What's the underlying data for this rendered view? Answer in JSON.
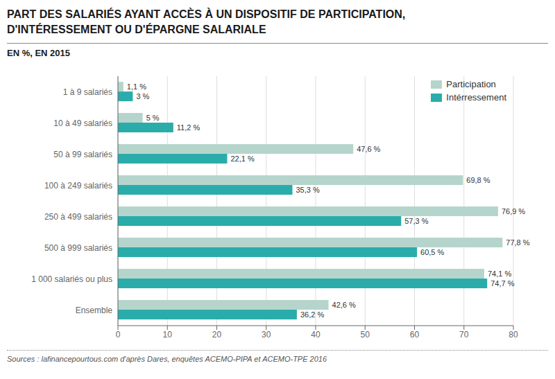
{
  "chart_data": {
    "type": "bar",
    "orientation": "horizontal",
    "title": [
      "PART DES SALARIÉS AYANT ACCÈS À UN DISPOSITIF DE PARTICIPATION,",
      "D'INTÉRESSEMENT OU D'ÉPARGNE SALARIALE"
    ],
    "subtitle": "EN %, EN 2015",
    "source": "Sources : lafinancepourtous.com d'après Dares, enquêtes ACEMO-PIPA et ACEMO-TPE 2016",
    "categories": [
      "1 à 9 salariés",
      "10 à 49 salariés",
      "50 à 99 salariés",
      "100 à 249 salariés",
      "250 à 499 salariés",
      "500 à 999 salariés",
      "1 000 salariés ou plus",
      "Ensemble"
    ],
    "series": [
      {
        "name": "Participation",
        "color": "#b5d5cc",
        "values": [
          1.1,
          5.0,
          47.6,
          69.8,
          76.9,
          77.8,
          74.1,
          42.6
        ],
        "value_labels": [
          "1,1 %",
          "5 %",
          "47,6 %",
          "69,8 %",
          "76,9 %",
          "77,8 %",
          "74,1 %",
          "42,6 %"
        ]
      },
      {
        "name": "Intérressement",
        "color": "#2aacaa",
        "values": [
          3.0,
          11.2,
          22.1,
          35.3,
          57.3,
          60.5,
          74.7,
          36.2
        ],
        "value_labels": [
          "3 %",
          "11,2 %",
          "22,1 %",
          "35,3 %",
          "57,3 %",
          "60,5 %",
          "74,7 %",
          "36,2 %"
        ]
      }
    ],
    "xlim": [
      0,
      80
    ],
    "xticks": [
      0,
      10,
      20,
      30,
      40,
      50,
      60,
      70,
      80
    ],
    "grid": true,
    "legend": "upper right",
    "data_labels": true
  }
}
